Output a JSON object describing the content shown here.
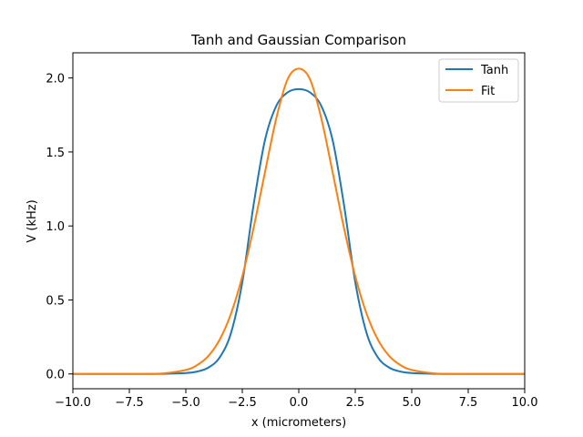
{
  "chart_data": {
    "type": "line",
    "title": "Tanh and Gaussian Comparison",
    "xlabel": "x (micrometers)",
    "ylabel": "V (kHz)",
    "xlim": [
      -10,
      10
    ],
    "ylim": [
      -0.1,
      2.17
    ],
    "grid": false,
    "legend": "top-right",
    "x_ticks": [
      -10,
      -7.5,
      -5,
      -2.5,
      0,
      2.5,
      5,
      7.5,
      10
    ],
    "x_tick_labels": [
      "−10.0",
      "−7.5",
      "−5.0",
      "−2.5",
      "0.0",
      "2.5",
      "5.0",
      "7.5",
      "10.0"
    ],
    "y_ticks": [
      0,
      0.5,
      1,
      1.5,
      2
    ],
    "y_tick_labels": [
      "0.0",
      "0.5",
      "1.0",
      "1.5",
      "2.0"
    ],
    "x": [
      -10,
      -9,
      -8,
      -7,
      -6,
      -5,
      -4.5,
      -4,
      -3.5,
      -3,
      -2.5,
      -2,
      -1.5,
      -1,
      -0.5,
      0,
      0.5,
      1,
      1.5,
      2,
      2.5,
      3,
      3.5,
      4,
      4.5,
      5,
      6,
      7,
      8,
      9,
      10
    ],
    "series": [
      {
        "name": "Tanh",
        "color": "#1f77b4",
        "values": [
          0,
          0,
          0,
          0,
          0.001,
          0.006,
          0.016,
          0.043,
          0.112,
          0.277,
          0.62,
          1.143,
          1.578,
          1.81,
          1.902,
          1.925,
          1.902,
          1.81,
          1.578,
          1.143,
          0.62,
          0.277,
          0.112,
          0.043,
          0.016,
          0.006,
          0.001,
          0,
          0,
          0,
          0
        ]
      },
      {
        "name": "Fit",
        "color": "#ff7f0e",
        "values": [
          0,
          0,
          0,
          0.0003,
          0.004,
          0.027,
          0.06,
          0.122,
          0.232,
          0.408,
          0.66,
          0.987,
          1.361,
          1.725,
          1.99,
          2.063,
          1.99,
          1.725,
          1.361,
          0.987,
          0.66,
          0.408,
          0.232,
          0.122,
          0.06,
          0.027,
          0.004,
          0.0003,
          0,
          0,
          0
        ]
      }
    ]
  }
}
